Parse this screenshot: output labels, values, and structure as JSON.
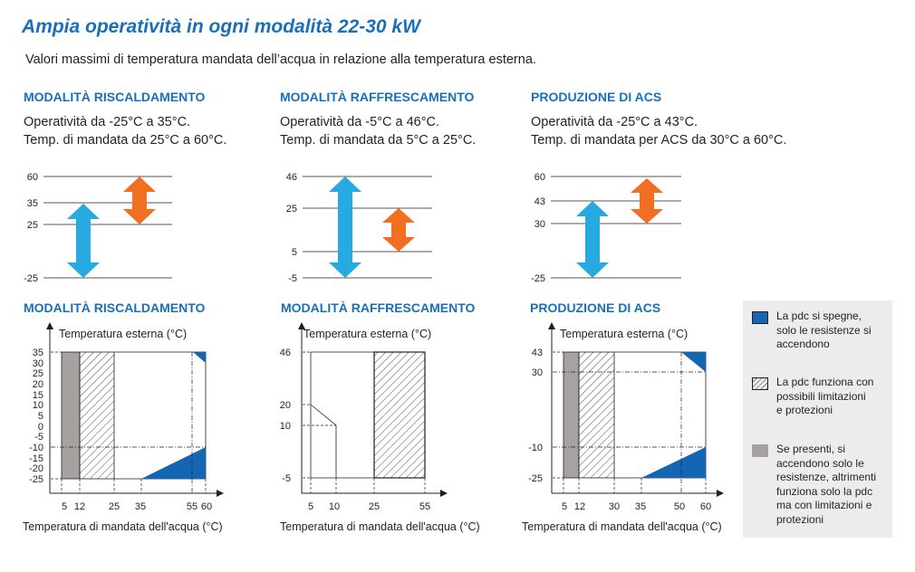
{
  "header": {
    "title": "Ampia operatività in ogni modalità 22-30 kW",
    "subtitle": "Valori massimi di temperatura mandata dell’acqua in relazione alla temperatura esterna."
  },
  "colors": {
    "accent": "#1a6fb8",
    "cool_arrow": "#27aae1",
    "heat_arrow": "#f26f21",
    "dark_blue": "#1565b5",
    "grey": "#a7a2a2"
  },
  "sections": [
    {
      "heading": "MODALITÀ RISCALDAMENTO",
      "desc": [
        "Operatività da -25°C a 35°C.",
        "Temp. di mandata da 25°C a 60°C."
      ],
      "range_ticks": [
        "60",
        "35",
        "25",
        "-25"
      ],
      "outdoor_range": [
        -25,
        35
      ],
      "flow_range": [
        25,
        60
      ],
      "chart_heading": "MODALITÀ RISCALDAMENTO",
      "chart_y_label": "Temperatura esterna (°C)",
      "chart_x_label": "Temperatura di mandata dell'acqua (°C)",
      "chart_y_ticks": [
        "35",
        "30",
        "25",
        "20",
        "15",
        "10",
        "5",
        "0",
        "-5",
        "-10",
        "-15",
        "-20",
        "-25"
      ],
      "chart_x_ticks": [
        "5",
        "12",
        "25",
        "35",
        "55",
        "60"
      ]
    },
    {
      "heading": "MODALITÀ RAFFRESCAMENTO",
      "desc": [
        "Operatività da -5°C a 46°C.",
        "Temp. di mandata da 5°C a 25°C."
      ],
      "range_ticks": [
        "46",
        "25",
        "5",
        "-5"
      ],
      "outdoor_range": [
        -5,
        46
      ],
      "flow_range": [
        5,
        25
      ],
      "chart_heading": "MODALITÀ RAFFRESCAMENTO",
      "chart_y_label": "Temperatura esterna (°C)",
      "chart_x_label": "Temperatura di mandata dell'acqua (°C)",
      "chart_y_ticks": [
        "46",
        "20",
        "10",
        "-5"
      ],
      "chart_x_ticks": [
        "5",
        "10",
        "25",
        "55"
      ]
    },
    {
      "heading": "PRODUZIONE DI ACS",
      "desc": [
        "Operatività da -25°C a 43°C.",
        "Temp. di mandata per ACS da 30°C a 60°C."
      ],
      "range_ticks": [
        "60",
        "43",
        "30",
        "-25"
      ],
      "outdoor_range": [
        -25,
        43
      ],
      "flow_range": [
        30,
        60
      ],
      "chart_heading": "PRODUZIONE DI ACS",
      "chart_y_label": "Temperatura esterna (°C)",
      "chart_x_label": "Temperatura di mandata dell'acqua (°C)",
      "chart_y_ticks": [
        "43",
        "30",
        "-10",
        "-25"
      ],
      "chart_x_ticks": [
        "5",
        "12",
        "30",
        "35",
        "50",
        "60"
      ]
    }
  ],
  "legend": {
    "items": [
      {
        "icon": "dark-blue-square",
        "lines": [
          "La pdc si spegne,",
          "solo le resistenze si",
          "accendono"
        ]
      },
      {
        "icon": "hatched-square",
        "lines": [
          "La pdc funziona con",
          "possibili limitazioni",
          "e protezioni"
        ]
      },
      {
        "icon": "grey-square",
        "lines": [
          "Se presenti, si",
          "accendono solo le",
          "resistenze, altrimenti",
          "funziona solo la pdc",
          "ma con limitazioni e",
          "protezioni"
        ]
      }
    ]
  }
}
